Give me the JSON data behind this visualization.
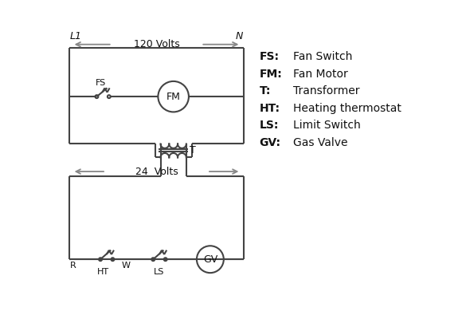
{
  "background_color": "#ffffff",
  "line_color": "#444444",
  "arrow_color": "#888888",
  "text_color": "#111111",
  "L1_label": "L1",
  "N_label": "N",
  "volts120": "120 Volts",
  "volts24": "24  Volts",
  "T_label": "T",
  "R_label": "R",
  "W_label": "W",
  "HT_label": "HT",
  "LS_label": "LS",
  "FS_label": "FS",
  "FM_label": "FM",
  "GV_label": "GV",
  "legend_items": [
    [
      "FS:",
      "Fan Switch"
    ],
    [
      "FM:",
      "Fan Motor"
    ],
    [
      "T:",
      "Transformer"
    ],
    [
      "HT:",
      "Heating thermostat"
    ],
    [
      "LS:",
      "Limit Switch"
    ],
    [
      "GV:",
      "Gas Valve"
    ]
  ]
}
